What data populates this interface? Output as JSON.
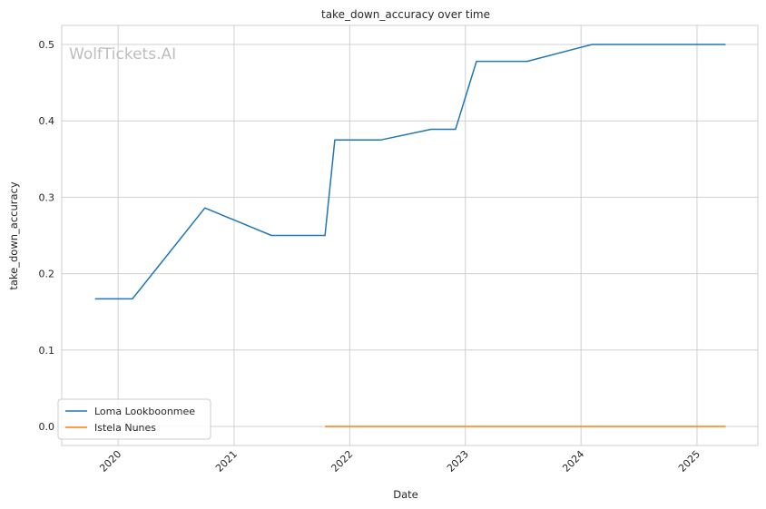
{
  "chart_data": {
    "type": "line",
    "title": "take_down_accuracy over time",
    "xlabel": "Date",
    "ylabel": "take_down_accuracy",
    "watermark": "WolfTickets.AI",
    "x_ticks": [
      "2020",
      "2021",
      "2022",
      "2023",
      "2024",
      "2025"
    ],
    "xlim": [
      "2019-07-07",
      "2025-07-12"
    ],
    "y_ticks": [
      0.0,
      0.1,
      0.2,
      0.3,
      0.4,
      0.5
    ],
    "ylim": [
      -0.025,
      0.525
    ],
    "grid": true,
    "legend_position": "lower-left",
    "series": [
      {
        "name": "Loma Lookboonmee",
        "color": "#1f77b4",
        "points": [
          {
            "date": "2019-10-20",
            "value": 0.167
          },
          {
            "date": "2020-02-15",
            "value": 0.167
          },
          {
            "date": "2020-10-01",
            "value": 0.286
          },
          {
            "date": "2021-04-29",
            "value": 0.25
          },
          {
            "date": "2021-10-15",
            "value": 0.25
          },
          {
            "date": "2021-11-15",
            "value": 0.375
          },
          {
            "date": "2022-04-08",
            "value": 0.375
          },
          {
            "date": "2022-09-15",
            "value": 0.389
          },
          {
            "date": "2022-12-01",
            "value": 0.389
          },
          {
            "date": "2023-02-05",
            "value": 0.478
          },
          {
            "date": "2023-07-15",
            "value": 0.478
          },
          {
            "date": "2024-02-05",
            "value": 0.5
          },
          {
            "date": "2025-04-01",
            "value": 0.5
          }
        ]
      },
      {
        "name": "Istela Nunes",
        "color": "#ff7f0e",
        "points": [
          {
            "date": "2021-10-15",
            "value": 0.0
          },
          {
            "date": "2025-04-01",
            "value": 0.0
          }
        ]
      }
    ]
  }
}
